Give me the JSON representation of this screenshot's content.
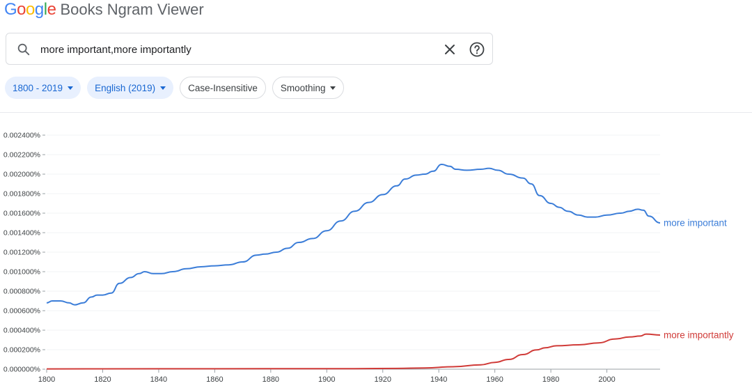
{
  "header": {
    "logo_text": "Google",
    "logo_colors": [
      "#4285F4",
      "#EA4335",
      "#FBBC05",
      "#4285F4",
      "#34A853",
      "#EA4335"
    ],
    "title": "Books Ngram Viewer"
  },
  "search": {
    "query": "more important,more importantly",
    "search_icon": "search-icon",
    "clear_icon": "close-icon",
    "help_icon": "help-icon"
  },
  "chips": {
    "years": "1800 - 2019",
    "corpus": "English (2019)",
    "case": "Case-Insensitive",
    "smoothing": "Smoothing"
  },
  "colors": {
    "accent": "#1967d2",
    "chip_selected_bg": "#e8f0fe",
    "series_1": "#3b7dd8",
    "series_2": "#d03b38"
  },
  "chart_data": {
    "type": "line",
    "xlim": [
      1800,
      2019
    ],
    "ylim": [
      0,
      0.0024
    ],
    "grid": true,
    "x_ticks": [
      "1800",
      "1820",
      "1840",
      "1860",
      "1880",
      "1900",
      "1920",
      "1940",
      "1960",
      "1980",
      "2000"
    ],
    "y_ticks": [
      "0.000000%",
      "0.000200%",
      "0.000400%",
      "0.000600%",
      "0.000800%",
      "0.001000%",
      "0.001200%",
      "0.001400%",
      "0.001600%",
      "0.001800%",
      "0.002000%",
      "0.002200%",
      "0.002400%"
    ],
    "series": [
      {
        "name": "more important",
        "color": "#3b7dd8",
        "points": [
          [
            1800,
            0.00068
          ],
          [
            1802,
            0.0007
          ],
          [
            1805,
            0.0007
          ],
          [
            1808,
            0.00068
          ],
          [
            1810,
            0.00066
          ],
          [
            1813,
            0.00068
          ],
          [
            1816,
            0.00074
          ],
          [
            1818,
            0.00076
          ],
          [
            1820,
            0.00076
          ],
          [
            1823,
            0.00078
          ],
          [
            1826,
            0.00088
          ],
          [
            1830,
            0.00094
          ],
          [
            1833,
            0.00098
          ],
          [
            1835,
            0.001
          ],
          [
            1838,
            0.00098
          ],
          [
            1841,
            0.00098
          ],
          [
            1845,
            0.001
          ],
          [
            1850,
            0.00103
          ],
          [
            1855,
            0.00105
          ],
          [
            1860,
            0.00106
          ],
          [
            1865,
            0.00107
          ],
          [
            1870,
            0.0011
          ],
          [
            1875,
            0.00117
          ],
          [
            1878,
            0.00118
          ],
          [
            1882,
            0.0012
          ],
          [
            1886,
            0.00124
          ],
          [
            1890,
            0.0013
          ],
          [
            1895,
            0.00134
          ],
          [
            1900,
            0.00142
          ],
          [
            1905,
            0.00152
          ],
          [
            1910,
            0.00162
          ],
          [
            1915,
            0.00171
          ],
          [
            1920,
            0.00179
          ],
          [
            1925,
            0.00188
          ],
          [
            1928,
            0.00195
          ],
          [
            1932,
            0.00199
          ],
          [
            1935,
            0.002
          ],
          [
            1938,
            0.00203
          ],
          [
            1941,
            0.0021
          ],
          [
            1944,
            0.00208
          ],
          [
            1946,
            0.00205
          ],
          [
            1950,
            0.00204
          ],
          [
            1955,
            0.00205
          ],
          [
            1958,
            0.00206
          ],
          [
            1961,
            0.00204
          ],
          [
            1965,
            0.002
          ],
          [
            1970,
            0.00196
          ],
          [
            1973,
            0.0019
          ],
          [
            1976,
            0.00178
          ],
          [
            1980,
            0.0017
          ],
          [
            1983,
            0.00166
          ],
          [
            1986,
            0.00162
          ],
          [
            1990,
            0.00158
          ],
          [
            1993,
            0.00156
          ],
          [
            1996,
            0.00156
          ],
          [
            2000,
            0.00158
          ],
          [
            2005,
            0.0016
          ],
          [
            2008,
            0.00162
          ],
          [
            2011,
            0.00164
          ],
          [
            2013,
            0.00163
          ],
          [
            2015,
            0.00157
          ],
          [
            2019,
            0.0015
          ]
        ]
      },
      {
        "name": "more importantly",
        "color": "#d03b38",
        "points": [
          [
            1800,
            3e-06
          ],
          [
            1840,
            4e-06
          ],
          [
            1880,
            5e-06
          ],
          [
            1910,
            6e-06
          ],
          [
            1925,
            8e-06
          ],
          [
            1935,
            1.3e-05
          ],
          [
            1945,
            2.5e-05
          ],
          [
            1955,
            4.5e-05
          ],
          [
            1960,
            7e-05
          ],
          [
            1965,
            0.0001
          ],
          [
            1970,
            0.00015
          ],
          [
            1975,
            0.000198
          ],
          [
            1978,
            0.00022
          ],
          [
            1982,
            0.00024
          ],
          [
            1990,
            0.00025
          ],
          [
            1997,
            0.00027
          ],
          [
            2003,
            0.00031
          ],
          [
            2008,
            0.00033
          ],
          [
            2012,
            0.00034
          ],
          [
            2014,
            0.00036
          ],
          [
            2019,
            0.00035
          ]
        ]
      }
    ]
  }
}
